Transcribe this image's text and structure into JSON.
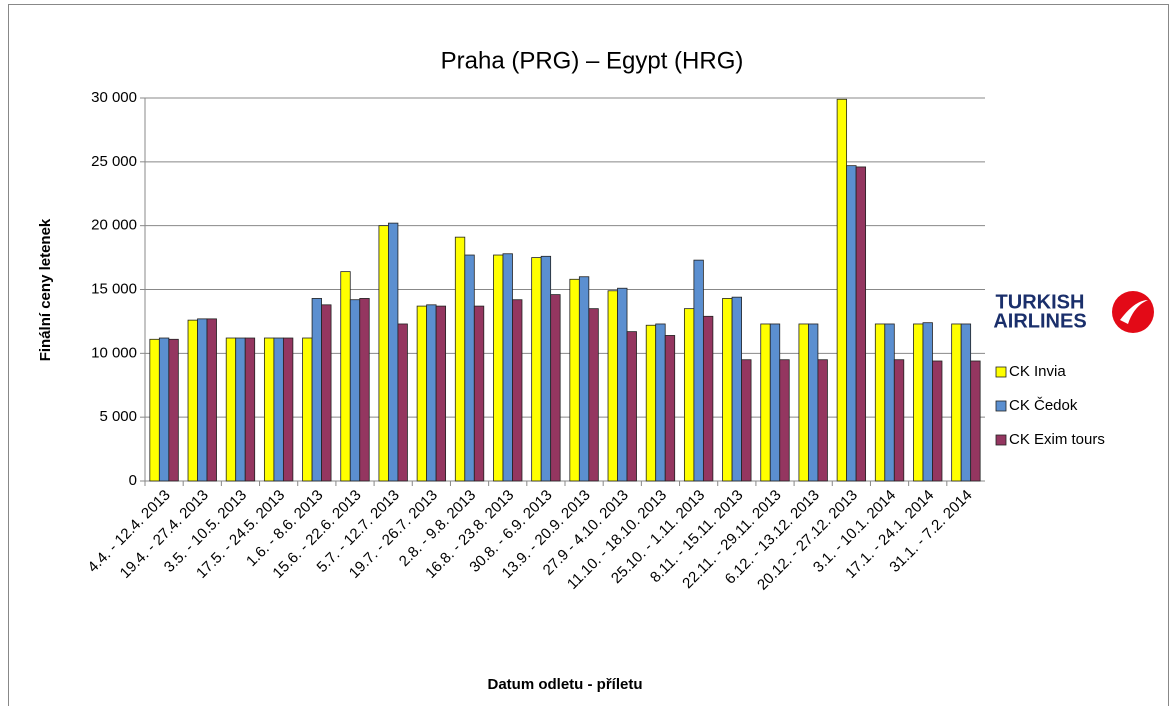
{
  "chart_data": {
    "type": "bar",
    "title": "Praha (PRG) – Egypt (HRG)",
    "y_label": "Finální ceny letenek",
    "x_label": "Datum odletu - příletu",
    "logo": [
      "TURKISH",
      "AIRLINES"
    ],
    "categories": [
      "4.4. - 12.4. 2013",
      "19.4. - 27.4. 2013",
      "3.5. - 10.5. 2013",
      "17.5. - 24.5. 2013",
      "1.6. - 8.6. 2013",
      "15.6. - 22.6. 2013",
      "5.7. - 12.7. 2013",
      "19.7. - 26.7. 2013",
      "2.8. - 9.8. 2013",
      "16.8. - 23.8. 2013",
      "30.8. - 6.9. 2013",
      "13.9. - 20.9. 2013",
      "27.9 - 4.10. 2013",
      "11.10. - 18.10. 2013",
      "25.10. - 1.11. 2013",
      "8.11. - 15.11. 2013",
      "22.11. - 29.11. 2013",
      "6.12. - 13.12. 2013",
      "20.12. - 27.12. 2013",
      "3.1. - 10.1. 2014",
      "17.1. - 24.1. 2014",
      "31.1. - 7.2. 2014"
    ],
    "series": [
      {
        "name": "CK Invia",
        "color": "#ffff00",
        "values": [
          11100,
          12600,
          11200,
          11200,
          11200,
          16400,
          20000,
          13700,
          19100,
          17700,
          17500,
          15800,
          14900,
          12200,
          13500,
          14300,
          12300,
          12300,
          29900,
          12300,
          12300,
          12300
        ]
      },
      {
        "name": "CK Čedok",
        "color": "#5b8fd0",
        "values": [
          11200,
          12700,
          11200,
          11200,
          14300,
          14200,
          20200,
          13800,
          17700,
          17800,
          17600,
          16000,
          15100,
          12300,
          17300,
          14400,
          12300,
          12300,
          24700,
          12300,
          12400,
          12300
        ]
      },
      {
        "name": "CK Exim tours",
        "color": "#943660",
        "values": [
          11100,
          12700,
          11200,
          11200,
          13800,
          14300,
          12300,
          13700,
          13700,
          14200,
          14600,
          13500,
          11700,
          11400,
          12900,
          9500,
          9500,
          9500,
          24600,
          9500,
          9400,
          9400
        ]
      }
    ],
    "ylim": [
      0,
      30000
    ],
    "yticks": [
      0,
      {
        "value": 5000,
        "label": "5 000"
      },
      {
        "value": 10000,
        "label": "10 000"
      },
      {
        "value": 15000,
        "label": "15 000"
      },
      {
        "value": 20000,
        "label": "20 000"
      },
      {
        "value": 25000,
        "label": "25 000"
      },
      {
        "value": 30000,
        "label": "30 000"
      }
    ],
    "grid": true
  }
}
